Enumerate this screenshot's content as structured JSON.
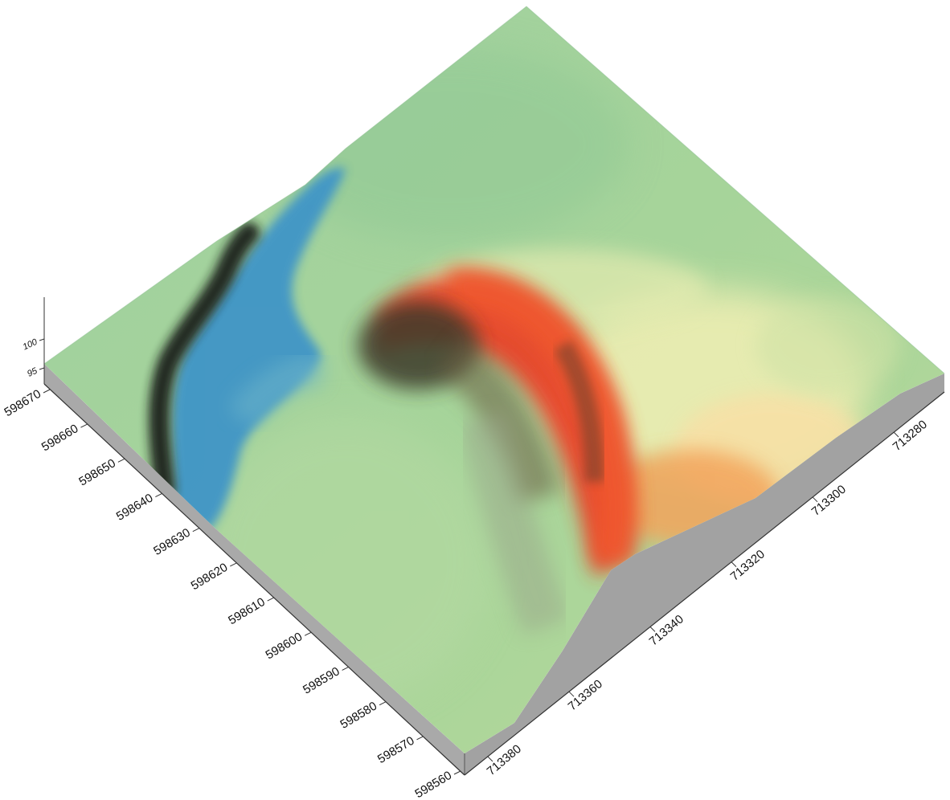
{
  "chart_data": {
    "type": "3d-surface",
    "title": "",
    "x_axis": {
      "label": "",
      "ticks": [
        713380,
        713360,
        713340,
        713320,
        713300,
        713280
      ]
    },
    "y_axis": {
      "label": "",
      "ticks": [
        598670,
        598660,
        598650,
        598640,
        598630,
        598620,
        598610,
        598600,
        598590,
        598580,
        598570,
        598560
      ]
    },
    "z_axis": {
      "label": "",
      "ticks": [
        95,
        100
      ]
    },
    "colors": {
      "terrain_green": "#9ccf96",
      "terrain_light": "#dfeaa9",
      "water_blue": "#3f95c7",
      "deep_dark": "#1a1f1e",
      "ridge_red": "#e8442a",
      "ridge_orange": "#f29a4d",
      "cut_face": "#a4a4a4"
    }
  }
}
